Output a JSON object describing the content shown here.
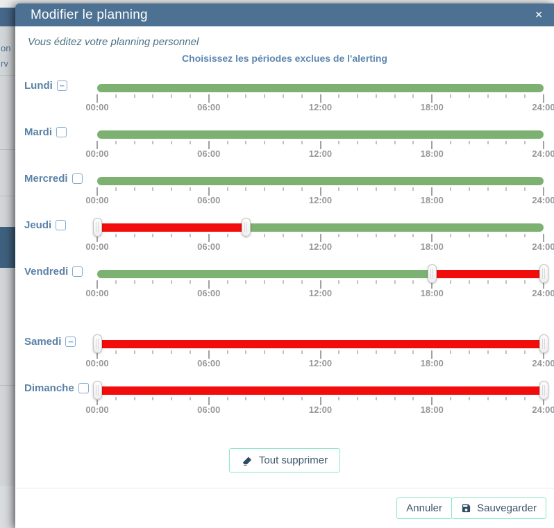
{
  "modal": {
    "title": "Modifier le planning",
    "subtitle": "Vous éditez votre planning personnel",
    "heading": "Choisissez les périodes exclues de l'alerting"
  },
  "icons": {
    "close": "✕",
    "remove_day": "−",
    "clear_all": "eraser",
    "save": "floppy-disk"
  },
  "slider": {
    "axis_labels": [
      "00:00",
      "06:00",
      "12:00",
      "18:00",
      "24:00"
    ],
    "hour_start": 0,
    "hour_end": 24,
    "tick_every_hours": 1,
    "major_tick_every_hours": 6,
    "colors": {
      "included": "#7db171",
      "excluded": "#f20d0d"
    }
  },
  "days": [
    {
      "label": "Lundi",
      "removable": true,
      "handles": [],
      "segments": [
        {
          "state": "included",
          "from": 0,
          "to": 24
        }
      ]
    },
    {
      "label": "Mardi",
      "removable": false,
      "handles": [],
      "segments": [
        {
          "state": "included",
          "from": 0,
          "to": 24
        }
      ]
    },
    {
      "label": "Mercredi",
      "removable": false,
      "handles": [],
      "segments": [
        {
          "state": "included",
          "from": 0,
          "to": 24
        }
      ]
    },
    {
      "label": "Jeudi",
      "removable": false,
      "handles": [
        0,
        8
      ],
      "segments": [
        {
          "state": "excluded",
          "from": 0,
          "to": 8
        },
        {
          "state": "included",
          "from": 8,
          "to": 24
        }
      ],
      "excluded_period": "00:00–08:00"
    },
    {
      "label": "Vendredi",
      "removable": false,
      "handles": [
        18,
        24
      ],
      "segments": [
        {
          "state": "included",
          "from": 0,
          "to": 18
        },
        {
          "state": "excluded",
          "from": 18,
          "to": 24
        }
      ],
      "excluded_period": "18:00–24:00"
    },
    {
      "label": "Samedi",
      "removable": true,
      "handles": [
        0,
        24
      ],
      "segments": [
        {
          "state": "excluded",
          "from": 0,
          "to": 24
        }
      ],
      "excluded_period": "00:00–24:00"
    },
    {
      "label": "Dimanche",
      "removable": false,
      "handles": [
        0,
        24
      ],
      "segments": [
        {
          "state": "excluded",
          "from": 0,
          "to": 24
        }
      ],
      "excluded_period": "00:00–24:00"
    }
  ],
  "actions": {
    "clear_all": "Tout supprimer",
    "cancel": "Annuler",
    "save": "Sauvegarder"
  },
  "background_fragments": [
    "on",
    "rv"
  ]
}
